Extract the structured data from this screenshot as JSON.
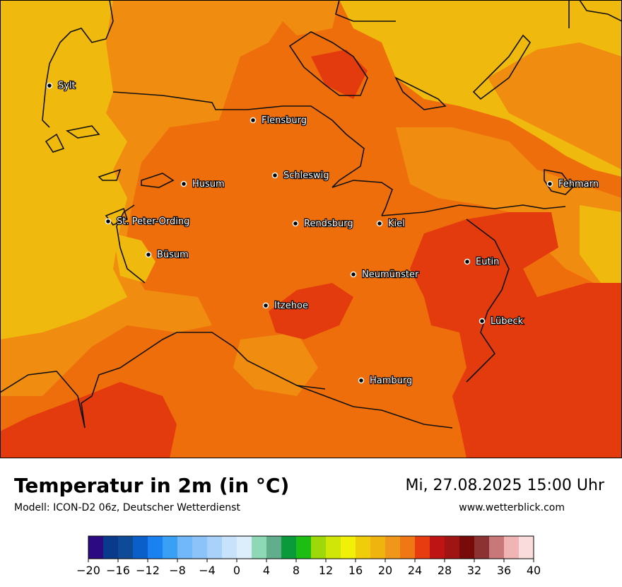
{
  "map": {
    "cities": [
      {
        "name": "Sylt"
      },
      {
        "name": "Flensburg"
      },
      {
        "name": "Schleswig"
      },
      {
        "name": "Husum"
      },
      {
        "name": "Fehmarn"
      },
      {
        "name": "St. Peter-Ording"
      },
      {
        "name": "Rendsburg"
      },
      {
        "name": "Kiel"
      },
      {
        "name": "Büsum"
      },
      {
        "name": "Eutin"
      },
      {
        "name": "Neumünster"
      },
      {
        "name": "Itzehoe"
      },
      {
        "name": "Lübeck"
      },
      {
        "name": "Hamburg"
      }
    ],
    "colors": {
      "band_16_20": "#f0b90d",
      "band_20_22": "#f08c0f",
      "band_22_24": "#ef6e0c",
      "band_24_26": "#e33a0e",
      "coastline": "#111111"
    }
  },
  "footer": {
    "title": "Temperatur in 2m (in °C)",
    "subtitle": "Modell: ICON-D2 06z, Deutscher Wetterdienst",
    "datetime": "Mi, 27.08.2025 15:00 Uhr",
    "website": "www.wetterblick.com"
  },
  "legend": {
    "tick_labels": [
      "−20",
      "−16",
      "−12",
      "−8",
      "−4",
      "0",
      "4",
      "8",
      "12",
      "16",
      "20",
      "24",
      "28",
      "32",
      "36",
      "40"
    ],
    "colors": [
      "#2c0a82",
      "#0a3a8c",
      "#0f4a96",
      "#0a5fc8",
      "#1a82f0",
      "#3aa0f5",
      "#70b8fa",
      "#8cc4fa",
      "#a8d2fa",
      "#c8e2fb",
      "#dceefc",
      "#8ed8b6",
      "#62ae8c",
      "#0a9a3c",
      "#1ebd14",
      "#9cd80a",
      "#cfe608",
      "#f0f008",
      "#f0cd0a",
      "#f0b40f",
      "#f0961a",
      "#f07814",
      "#e63c0f",
      "#be1414",
      "#a01414",
      "#780a0a",
      "#8c3232",
      "#c87878",
      "#f0b4b4",
      "#fadcdc"
    ]
  }
}
